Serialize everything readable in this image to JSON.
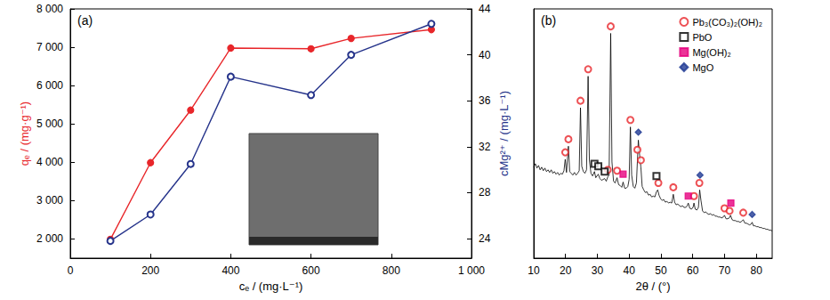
{
  "chart_data": [
    {
      "type": "line",
      "annotation": "(a)",
      "x_label": "cₑ / (mg·L⁻¹)",
      "y_label": "qₑ / (mg·g⁻¹)",
      "y2_label": "cMg²⁺ / (mg·L⁻¹)",
      "xlim": [
        0,
        1000
      ],
      "xticks": [
        0,
        200,
        400,
        600,
        800,
        {
          "value": 1000,
          "label": "1 000"
        }
      ],
      "ylim": [
        1500,
        8000
      ],
      "yticks": [
        {
          "value": 2000,
          "label": "2 000"
        },
        {
          "value": 3000,
          "label": "3 000"
        },
        {
          "value": 4000,
          "label": "4 000"
        },
        {
          "value": 5000,
          "label": "5 000"
        },
        {
          "value": 6000,
          "label": "6 000"
        },
        {
          "value": 7000,
          "label": "7 000"
        },
        {
          "value": 8000,
          "label": "8 000"
        }
      ],
      "y2lim": [
        22.3,
        44
      ],
      "y2ticks": [
        24,
        28,
        32,
        36,
        40,
        44
      ],
      "grid": false,
      "x": [
        100,
        200,
        300,
        400,
        600,
        700,
        900
      ],
      "series": [
        {
          "color": "#e8262a",
          "marker": "circle",
          "line_style": "solid",
          "values": [
            1990,
            3990,
            5360,
            6980,
            6960,
            7230,
            7460
          ]
        },
        {
          "axis": "y2",
          "color": "#26348b",
          "marker": "open_circle",
          "line_style": "solid",
          "values": [
            23.8,
            26.1,
            30.5,
            38.1,
            36.5,
            40.0,
            42.7
          ]
        }
      ]
    },
    {
      "type": "line",
      "annotation": "(b)",
      "x_label": "2θ / (°)",
      "xlim": [
        10,
        85
      ],
      "xticks": [
        10,
        20,
        30,
        40,
        50,
        60,
        70,
        80
      ],
      "ylim": [
        0,
        285
      ],
      "tick_labels": "x",
      "grid": false,
      "legend": "upper right",
      "series": [
        {
          "type": "line",
          "color": "#000000",
          "line_style": "solid",
          "x": [
            10,
            10.5,
            11,
            11.5,
            12,
            12.5,
            13,
            13.5,
            14,
            14.5,
            15,
            15.5,
            16,
            16.5,
            17,
            17.5,
            18,
            18.5,
            19,
            19.5,
            19.9,
            20.3,
            20.9,
            21.3,
            21.8,
            22.3,
            22.8,
            23.3,
            23.8,
            24.3,
            24.7,
            25.1,
            25.6,
            26.1,
            26.6,
            27.1,
            27.5,
            28,
            28.5,
            29.1,
            29.5,
            30.3,
            30.8,
            31.3,
            31.8,
            32.3,
            32.8,
            33.3,
            33.7,
            34.2,
            34.6,
            35.1,
            35.6,
            36.2,
            36.7,
            37.2,
            37.7,
            38.1,
            38.6,
            39.1,
            39.6,
            40,
            40.4,
            40.8,
            41.3,
            41.8,
            42.3,
            42.9,
            43.3,
            43.7,
            44.1,
            44.6,
            45.1,
            45.6,
            46.1,
            46.6,
            47.1,
            47.6,
            48.1,
            48.6,
            49,
            49.4,
            49.9,
            50.4,
            50.9,
            51.4,
            51.9,
            52.4,
            52.9,
            53.4,
            53.9,
            54.3,
            54.8,
            55.3,
            55.8,
            56.3,
            56.8,
            57.3,
            57.8,
            58.3,
            58.6,
            59.1,
            59.6,
            60.1,
            60.4,
            60.8,
            61.3,
            61.8,
            62.2,
            62.6,
            63.1,
            63.6,
            64.1,
            64.6,
            65.1,
            65.6,
            66.1,
            66.6,
            67.1,
            67.6,
            68.1,
            68.6,
            69.1,
            69.6,
            70,
            70.5,
            71,
            71.5,
            71.9,
            72.4,
            72.9,
            73.4,
            73.9,
            74.4,
            74.9,
            75.4,
            75.9,
            76.4,
            76.9,
            77.4,
            77.9,
            78.4,
            78.7,
            79.1,
            79.6,
            80.1,
            80.6,
            81.1,
            81.6,
            82.1,
            82.6,
            83.1,
            83.6,
            84.1,
            84.6,
            85
          ],
          "values": [
            104,
            108,
            103,
            106,
            101,
            104,
            100,
            103,
            99,
            101,
            98,
            101,
            97,
            99,
            96,
            98,
            95,
            97,
            96,
            100,
            113,
            98,
            128,
            99,
            97,
            95,
            98,
            95,
            97,
            100,
            172,
            105,
            99,
            97,
            101,
            208,
            112,
            97,
            94,
            99,
            92,
            96,
            91,
            89,
            90,
            91,
            88,
            93,
            95,
            257,
            110,
            88,
            86,
            92,
            84,
            83,
            81,
            87,
            80,
            80,
            82,
            90,
            150,
            95,
            82,
            80,
            86,
            135,
            118,
            104,
            82,
            78,
            75,
            76,
            72,
            73,
            70,
            71,
            70,
            76,
            78,
            72,
            68,
            66,
            67,
            64,
            65,
            63,
            64,
            63,
            73,
            64,
            61,
            62,
            60,
            59,
            60,
            58,
            58,
            60,
            63,
            57,
            56,
            58,
            63,
            56,
            55,
            58,
            78,
            66,
            54,
            52,
            53,
            51,
            50,
            51,
            49,
            50,
            48,
            48,
            47,
            47,
            46,
            47,
            49,
            45,
            45,
            46,
            49,
            44,
            43,
            43,
            42,
            42,
            41,
            42,
            44,
            40,
            40,
            39,
            38,
            39,
            41,
            37,
            37,
            36,
            36,
            35,
            35,
            34,
            34,
            33,
            33,
            32,
            32,
            31
          ]
        },
        {
          "type": "scatter",
          "name": "Pb₃(CO₃)₂(OH)₂",
          "color": "#e8262a",
          "marker": "open_circle",
          "x": [
            19.9,
            20.9,
            24.7,
            27.1,
            33.3,
            34.2,
            36.2,
            40.4,
            42.6,
            43.7,
            49.2,
            53.9,
            60.4,
            62.1,
            70,
            71.6,
            75.9
          ],
          "values": [
            121,
            136,
            180,
            216,
            101,
            265,
            100,
            158,
            124,
            112,
            86,
            81,
            71,
            86,
            57,
            54,
            52
          ]
        },
        {
          "type": "scatter",
          "name": "PbO",
          "color": "#000000",
          "marker": "open_square",
          "x": [
            29.1,
            30.3,
            32.3,
            48.6
          ],
          "values": [
            108,
            105,
            99,
            94
          ]
        },
        {
          "type": "scatter",
          "name": "Mg(OH)₂",
          "color": "#e6007e",
          "marker": "square",
          "x": [
            38.1,
            58.6,
            72
          ],
          "values": [
            96,
            71,
            63
          ]
        },
        {
          "type": "scatter",
          "name": "MgO",
          "color": "#1f3a93",
          "marker": "diamond",
          "x": [
            42.9,
            62.3,
            78.7
          ],
          "values": [
            144,
            95,
            50
          ]
        }
      ]
    }
  ]
}
